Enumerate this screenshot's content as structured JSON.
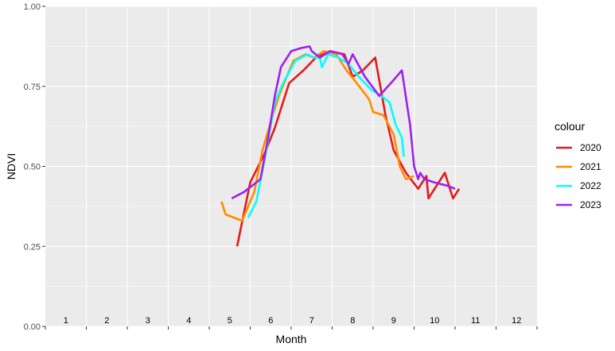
{
  "chart_data": {
    "type": "line",
    "title": "",
    "xlabel": "Month",
    "ylabel": "NDVI",
    "ylim": [
      0,
      1
    ],
    "xlim": [
      0.5,
      12.5
    ],
    "grid": true,
    "y_ticks": [
      "0.00",
      "0.25",
      "0.50",
      "0.75",
      "1.00"
    ],
    "y_tick_values": [
      0,
      0.25,
      0.5,
      0.75,
      1.0
    ],
    "month_labels": [
      "1",
      "2",
      "3",
      "4",
      "5",
      "6",
      "7",
      "8",
      "9",
      "10",
      "11",
      "12"
    ],
    "legend": {
      "title": "colour",
      "position": "right"
    },
    "series": [
      {
        "name": "2020",
        "color": "#E41A1C",
        "points": [
          [
            5.18,
            0.25
          ],
          [
            5.5,
            0.45
          ],
          [
            5.85,
            0.54
          ],
          [
            6.1,
            0.62
          ],
          [
            6.45,
            0.76
          ],
          [
            6.8,
            0.8
          ],
          [
            7.1,
            0.84
          ],
          [
            7.45,
            0.86
          ],
          [
            7.8,
            0.85
          ],
          [
            8.0,
            0.78
          ],
          [
            8.25,
            0.8
          ],
          [
            8.55,
            0.84
          ],
          [
            8.8,
            0.66
          ],
          [
            9.0,
            0.55
          ],
          [
            9.3,
            0.48
          ],
          [
            9.6,
            0.43
          ],
          [
            9.8,
            0.47
          ],
          [
            9.85,
            0.4
          ],
          [
            10.1,
            0.45
          ],
          [
            10.25,
            0.48
          ],
          [
            10.45,
            0.4
          ],
          [
            10.6,
            0.43
          ]
        ]
      },
      {
        "name": "2021",
        "color": "#FF8C00",
        "points": [
          [
            4.8,
            0.39
          ],
          [
            4.9,
            0.35
          ],
          [
            5.1,
            0.34
          ],
          [
            5.3,
            0.33
          ],
          [
            5.6,
            0.42
          ],
          [
            5.8,
            0.55
          ],
          [
            6.0,
            0.64
          ],
          [
            6.2,
            0.72
          ],
          [
            6.55,
            0.83
          ],
          [
            6.85,
            0.85
          ],
          [
            7.05,
            0.84
          ],
          [
            7.3,
            0.86
          ],
          [
            7.6,
            0.85
          ],
          [
            7.85,
            0.8
          ],
          [
            8.1,
            0.76
          ],
          [
            8.4,
            0.71
          ],
          [
            8.5,
            0.67
          ],
          [
            8.75,
            0.66
          ],
          [
            9.0,
            0.6
          ],
          [
            9.15,
            0.5
          ],
          [
            9.3,
            0.46
          ],
          [
            9.5,
            0.47
          ]
        ]
      },
      {
        "name": "2022",
        "color": "#00FFFF",
        "points": [
          [
            5.45,
            0.34
          ],
          [
            5.65,
            0.39
          ],
          [
            5.85,
            0.52
          ],
          [
            6.1,
            0.7
          ],
          [
            6.3,
            0.76
          ],
          [
            6.6,
            0.83
          ],
          [
            6.9,
            0.85
          ],
          [
            7.05,
            0.84
          ],
          [
            7.2,
            0.84
          ],
          [
            7.25,
            0.81
          ],
          [
            7.4,
            0.85
          ],
          [
            7.65,
            0.84
          ],
          [
            7.9,
            0.82
          ],
          [
            8.15,
            0.78
          ],
          [
            8.45,
            0.74
          ],
          [
            8.7,
            0.72
          ],
          [
            8.9,
            0.7
          ],
          [
            9.05,
            0.63
          ],
          [
            9.2,
            0.59
          ],
          [
            9.25,
            0.53
          ]
        ]
      },
      {
        "name": "2023",
        "color": "#A020F0",
        "points": [
          [
            5.05,
            0.4
          ],
          [
            5.35,
            0.42
          ],
          [
            5.55,
            0.44
          ],
          [
            5.75,
            0.46
          ],
          [
            5.95,
            0.6
          ],
          [
            6.1,
            0.72
          ],
          [
            6.25,
            0.81
          ],
          [
            6.5,
            0.86
          ],
          [
            6.75,
            0.87
          ],
          [
            6.95,
            0.875
          ],
          [
            7.0,
            0.86
          ],
          [
            7.2,
            0.84
          ],
          [
            7.45,
            0.86
          ],
          [
            7.75,
            0.85
          ],
          [
            7.9,
            0.82
          ],
          [
            8.0,
            0.85
          ],
          [
            8.3,
            0.78
          ],
          [
            8.65,
            0.72
          ],
          [
            9.0,
            0.77
          ],
          [
            9.2,
            0.8
          ],
          [
            9.4,
            0.63
          ],
          [
            9.5,
            0.5
          ],
          [
            9.6,
            0.46
          ],
          [
            9.65,
            0.48
          ],
          [
            9.75,
            0.46
          ],
          [
            10.0,
            0.45
          ],
          [
            10.3,
            0.44
          ],
          [
            10.5,
            0.43
          ]
        ]
      }
    ]
  }
}
